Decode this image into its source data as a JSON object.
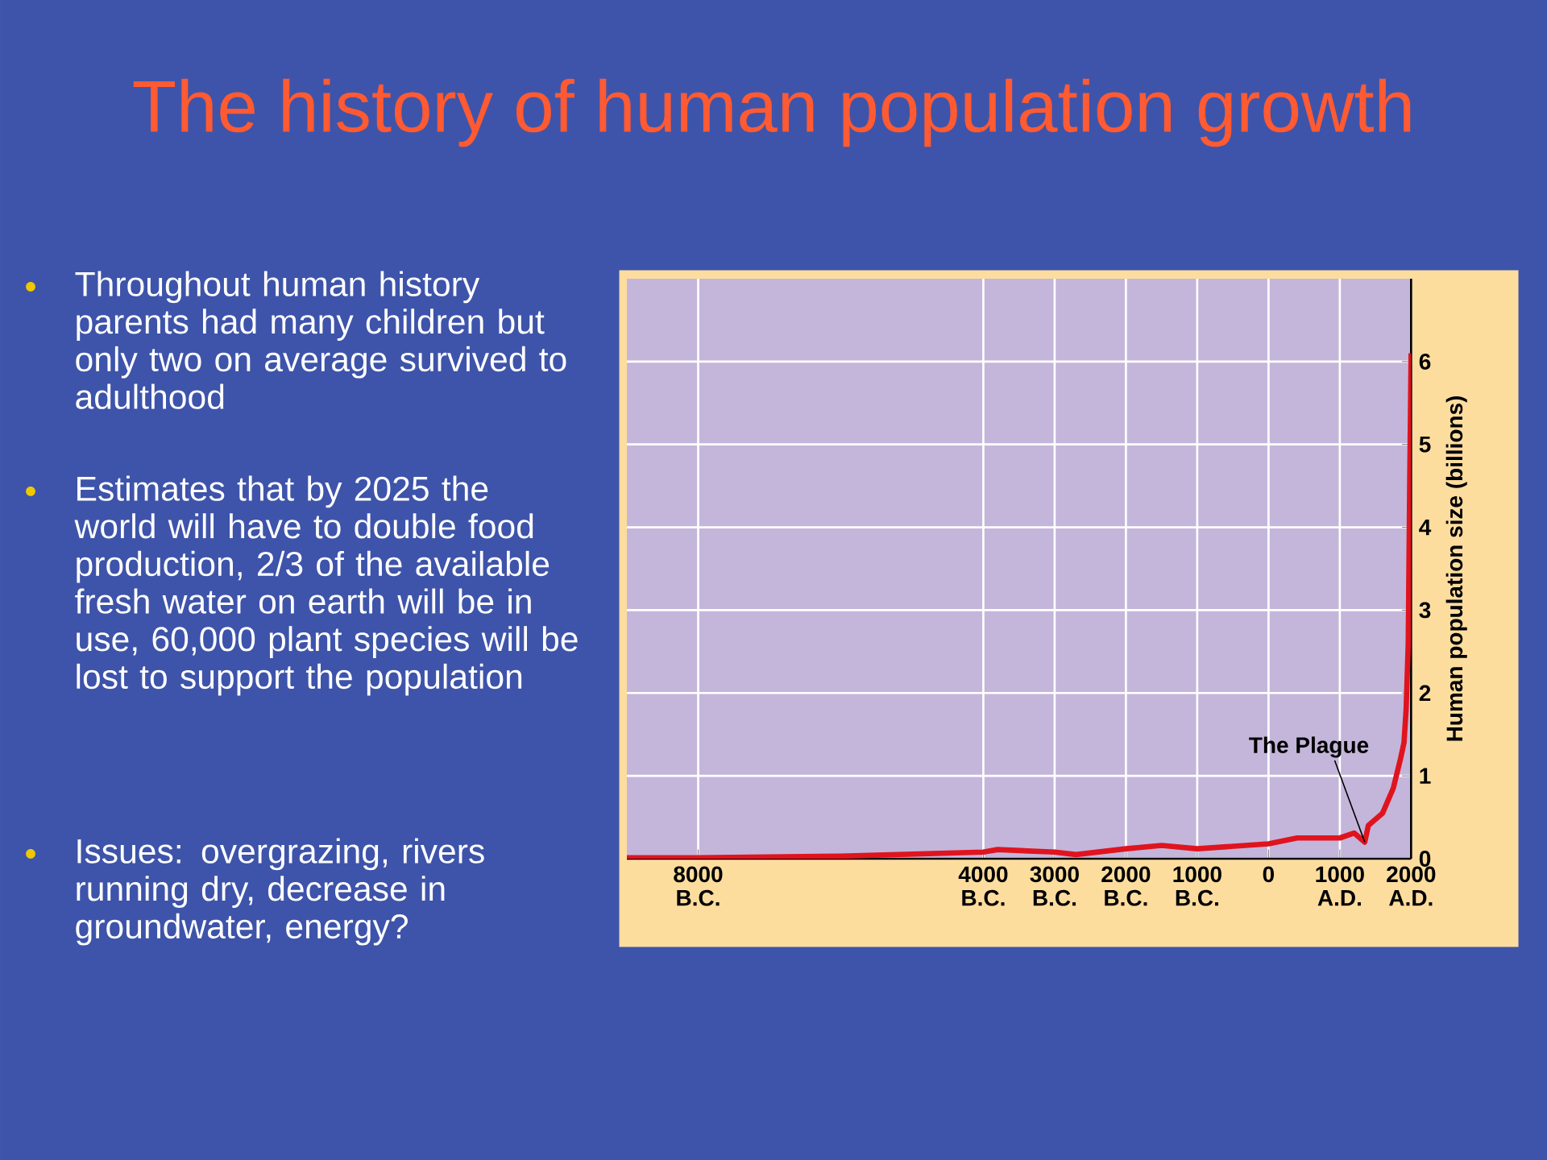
{
  "chart_data": {
    "type": "line",
    "title": "The history of human population growth",
    "annotations": [
      "Throughout human history parents had many children but only two on average survived to adulthood",
      "Estimates that by 2025 the world will have to double food production, 2/3 of the available fresh water on earth will be in use, 60,000 plant species will be lost to support the population",
      "Issues:  overgrazing, rivers running dry, decrease in groundwater, energy?",
      {
        "text": "The Plague",
        "x": 1350,
        "y": 0.2
      }
    ],
    "ylabel": "Human population size (billions)",
    "x": [
      -9000,
      -8000,
      -6000,
      -4000,
      -3800,
      -3000,
      -2700,
      -2000,
      -1500,
      -1000,
      0,
      400,
      1000,
      1200,
      1350,
      1400,
      1600,
      1750,
      1850,
      1900,
      1930,
      1960,
      1980,
      2000
    ],
    "series": [
      {
        "color": "#e0141e",
        "values": [
          0.01,
          0.01,
          0.03,
          0.08,
          0.11,
          0.08,
          0.05,
          0.12,
          0.16,
          0.12,
          0.18,
          0.25,
          0.25,
          0.31,
          0.2,
          0.4,
          0.55,
          0.85,
          1.2,
          1.4,
          1.8,
          2.6,
          4.5,
          6.1
        ]
      }
    ],
    "xlim": [
      -9000,
      2000
    ],
    "ylim": [
      0,
      7
    ],
    "xticks": [
      {
        "value": -8000,
        "label": "8000 B.C."
      },
      {
        "value": -4000,
        "label": "4000 B.C."
      },
      {
        "value": -3000,
        "label": "3000 B.C."
      },
      {
        "value": -2000,
        "label": "2000 B.C."
      },
      {
        "value": -1000,
        "label": "1000 B.C."
      },
      0,
      {
        "value": 1000,
        "label": "1000 A.D."
      },
      {
        "value": 2000,
        "label": "2000 A.D."
      }
    ],
    "yticks": [
      0,
      1,
      2,
      3,
      4,
      5,
      6
    ],
    "grid": true,
    "line_style": "solid",
    "marker": "none"
  }
}
